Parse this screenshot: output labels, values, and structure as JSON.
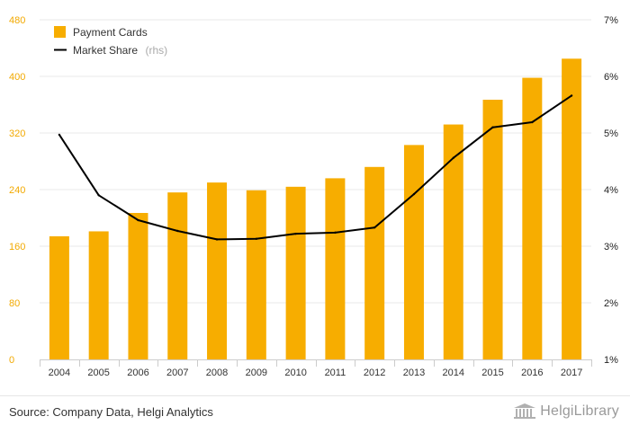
{
  "chart_data": {
    "type": "bar",
    "categories": [
      "2004",
      "2005",
      "2006",
      "2007",
      "2008",
      "2009",
      "2010",
      "2011",
      "2012",
      "2013",
      "2014",
      "2015",
      "2016",
      "2017"
    ],
    "series": [
      {
        "name": "Payment Cards",
        "kind": "bar",
        "axis": "left",
        "values": [
          174,
          181,
          207,
          236,
          250,
          239,
          244,
          256,
          272,
          303,
          332,
          367,
          398,
          425
        ]
      },
      {
        "name": "Market Share",
        "name_suffix": "(rhs)",
        "kind": "line",
        "axis": "right",
        "values": [
          4.97,
          3.9,
          3.46,
          3.27,
          3.12,
          3.13,
          3.22,
          3.24,
          3.33,
          3.92,
          4.56,
          5.1,
          5.19,
          5.66
        ]
      }
    ],
    "y_left": {
      "ylim": [
        0,
        480
      ],
      "ticks": [
        "0",
        "80",
        "160",
        "240",
        "320",
        "400",
        "480"
      ],
      "color": "#f2a900"
    },
    "y_right": {
      "ylim": [
        1,
        7
      ],
      "ticks": [
        "1%",
        "2%",
        "3%",
        "4%",
        "5%",
        "6%",
        "7%"
      ]
    },
    "legend_position": "top-left",
    "grid": "horizontal",
    "colors": {
      "bar": "#f7ad00",
      "line": "#000000",
      "grid": "#e8e8e8"
    }
  },
  "footer": {
    "source": "Source: Company Data, Helgi Analytics",
    "brand": "HelgiLibrary"
  }
}
